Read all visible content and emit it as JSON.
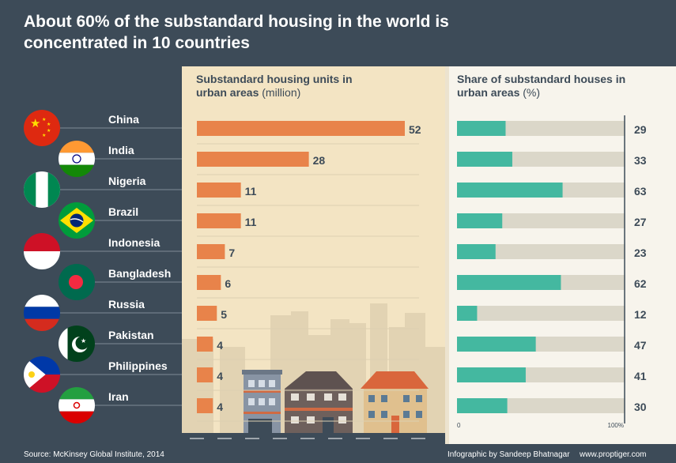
{
  "title": "About 60% of the substandard housing in the world is concentrated in 10 countries",
  "left_header": {
    "bold": "Substandard housing units in urban areas",
    "unit": "(million)"
  },
  "right_header": {
    "bold": "Share of substandard houses in urban areas",
    "unit": "(%)"
  },
  "footer": {
    "source": "Source: McKinsey Global Institute, 2014",
    "credit": "Infographic by Sandeep Bhatnagar",
    "website": "www.proptiger.com"
  },
  "colors": {
    "units_bar": "#e8834a",
    "share_bar": "#44b8a0",
    "share_track": "#dbd7c9",
    "text": "#3d4b58",
    "background": "#3d4b58"
  },
  "chart_data": {
    "type": "bar",
    "title": "About 60% of the substandard housing in the world is concentrated in 10 countries",
    "categories": [
      "China",
      "India",
      "Nigeria",
      "Brazil",
      "Indonesia",
      "Bangladesh",
      "Russia",
      "Pakistan",
      "Philippines",
      "Iran"
    ],
    "flags": [
      "china-flag-icon",
      "india-flag-icon",
      "nigeria-flag-icon",
      "brazil-flag-icon",
      "indonesia-flag-icon",
      "bangladesh-flag-icon",
      "russia-flag-icon",
      "pakistan-flag-icon",
      "philippines-flag-icon",
      "iran-flag-icon"
    ],
    "series": [
      {
        "name": "Substandard housing units in urban areas (million)",
        "values": [
          52,
          28,
          11,
          11,
          7,
          6,
          5,
          4,
          4,
          4
        ],
        "xlim": [
          0,
          52
        ]
      },
      {
        "name": "Share of substandard houses in urban areas (%)",
        "values": [
          29,
          33,
          63,
          27,
          23,
          62,
          12,
          47,
          41,
          30
        ],
        "xlim": [
          0,
          100
        ],
        "tick_labels": [
          "0",
          "100%"
        ]
      }
    ]
  }
}
